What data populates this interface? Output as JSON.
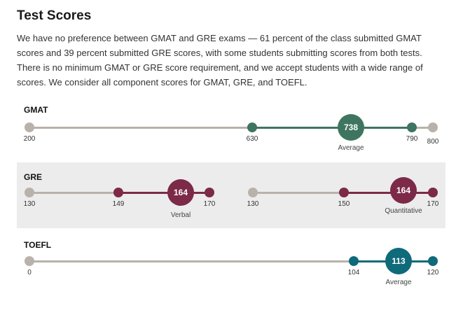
{
  "title": "Test Scores",
  "intro": "We have no preference between GMAT and GRE exams — 61 percent of the class submitted GMAT scores and 39 percent submitted GRE scores, with some students submitting scores from both tests. There is no minimum GMAT or GRE score requirement, and we accept students with a wide range of scores. We consider all component scores for GMAT, GRE, and TOEFL.",
  "colors": {
    "gmat": "#3f7560",
    "gre": "#7c2a48",
    "toefl": "#0f6a7a",
    "base": "#b8b2aa"
  },
  "gmat": {
    "label": "GMAT",
    "scale_min": "200",
    "range_low": "630",
    "average": "738",
    "range_high": "790",
    "scale_max": "800",
    "caption": "Average"
  },
  "gre": {
    "label": "GRE",
    "verbal": {
      "scale_min": "130",
      "range_low": "149",
      "average": "164",
      "range_high": "170",
      "caption": "Verbal"
    },
    "quant": {
      "scale_min": "130",
      "range_low": "150",
      "average": "164",
      "range_high": "170",
      "caption": "Quantitative"
    }
  },
  "toefl": {
    "label": "TOEFL",
    "scale_min": "0",
    "range_low": "104",
    "average": "113",
    "range_high": "120",
    "caption": "Average"
  }
}
